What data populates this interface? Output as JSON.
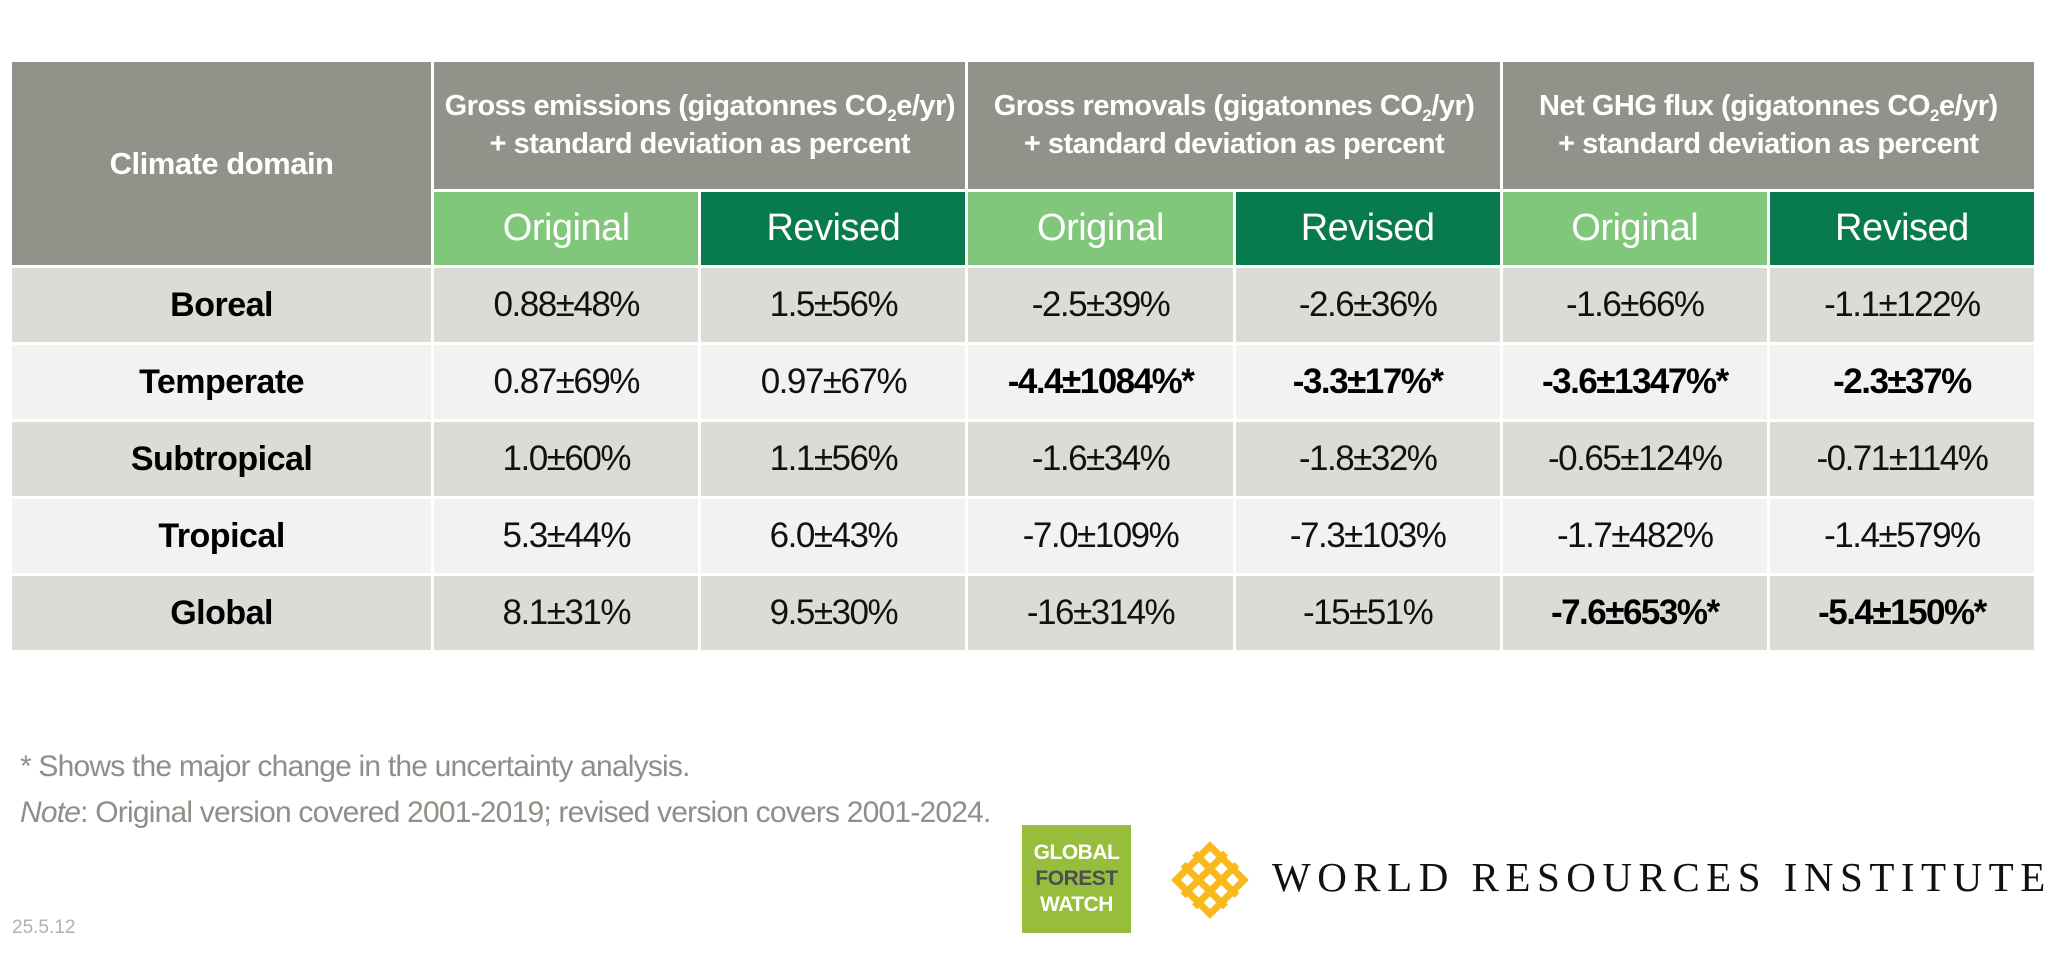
{
  "table": {
    "domain_header": "Climate domain",
    "groups": [
      {
        "line1_pre": "Gross emissions (gigatonnes CO",
        "sub": "2",
        "line1_post": "e/yr)",
        "line2": "+ standard deviation as percent"
      },
      {
        "line1_pre": "Gross removals (gigatonnes CO",
        "sub": "2",
        "line1_post": "/yr)",
        "line2": "+ standard deviation as percent"
      },
      {
        "line1_pre": "Net GHG flux (gigatonnes CO",
        "sub": "2",
        "line1_post": "e/yr)",
        "line2": "+ standard deviation as percent"
      }
    ],
    "subheaders": {
      "original": "Original",
      "revised": "Revised"
    },
    "colors": {
      "header_gray": "#92928a",
      "original_green": "#80c77c",
      "revised_green": "#077a4e",
      "row_dark": "#dcdcd6",
      "row_light": "#f3f2f0"
    },
    "rows": [
      {
        "domain": "Boreal",
        "cells": [
          "0.88±48%",
          "1.5±56%",
          "-2.5±39%",
          "-2.6±36%",
          "-1.6±66%",
          "-1.1±122%"
        ],
        "bold": [
          false,
          false,
          false,
          false,
          false,
          false
        ]
      },
      {
        "domain": "Temperate",
        "cells": [
          "0.87±69%",
          "0.97±67%",
          "-4.4±1084%*",
          "-3.3±17%*",
          "-3.6±1347%*",
          "-2.3±37%"
        ],
        "bold": [
          false,
          false,
          true,
          true,
          true,
          true
        ]
      },
      {
        "domain": "Subtropical",
        "cells": [
          "1.0±60%",
          "1.1±56%",
          "-1.6±34%",
          "-1.8±32%",
          "-0.65±124%",
          "-0.71±114%"
        ],
        "bold": [
          false,
          false,
          false,
          false,
          false,
          false
        ]
      },
      {
        "domain": "Tropical",
        "cells": [
          "5.3±44%",
          "6.0±43%",
          "-7.0±109%",
          "-7.3±103%",
          "-1.7±482%",
          "-1.4±579%"
        ],
        "bold": [
          false,
          false,
          false,
          false,
          false,
          false
        ]
      },
      {
        "domain": "Global",
        "cells": [
          "8.1±31%",
          "9.5±30%",
          "-16±314%",
          "-15±51%",
          "-7.6±653%*",
          "-5.4±150%*"
        ],
        "bold": [
          false,
          false,
          false,
          false,
          true,
          true
        ]
      }
    ]
  },
  "footnotes": {
    "asterisk": "* Shows the major change in the uncertainty analysis.",
    "note_label": "Note",
    "note_text": ": Original version covered 2001-2019; revised version covers 2001-2024."
  },
  "version": "25.5.12",
  "logos": {
    "gfw": {
      "line1": "GLOBAL",
      "line2": "FOREST",
      "line3": "WATCH",
      "color": "#97bd3d"
    },
    "wri": {
      "text": "WORLD RESOURCES INSTITUTE",
      "mark_color": "#f9b91b"
    }
  }
}
